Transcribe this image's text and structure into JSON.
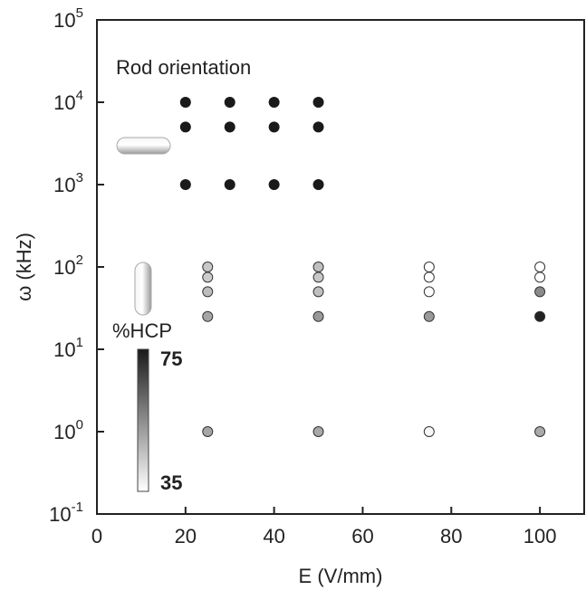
{
  "chart_data": {
    "type": "scatter",
    "annotation": "Rod orientation",
    "xlabel": "E (V/mm)",
    "ylabel": "ω (kHz)",
    "xlim": [
      0,
      110
    ],
    "ylim": [
      0.1,
      100000
    ],
    "log_y": true,
    "xticks": [
      0,
      20,
      40,
      60,
      80,
      100
    ],
    "yticks": [
      {
        "value": 0.1,
        "label": "10",
        "exponent": "-1"
      },
      {
        "value": 1,
        "label": "10",
        "exponent": "0"
      },
      {
        "value": 10,
        "label": "10",
        "exponent": "1"
      },
      {
        "value": 100,
        "label": "10",
        "exponent": "2"
      },
      {
        "value": 1000,
        "label": "10",
        "exponent": "3"
      },
      {
        "value": 10000,
        "label": "10",
        "exponent": "4"
      },
      {
        "value": 100000,
        "label": "10",
        "exponent": "5"
      }
    ],
    "series": [
      {
        "color": "#1a1a1a",
        "x": [
          20,
          30,
          40,
          50,
          20,
          30,
          40,
          50,
          20,
          30,
          40,
          50
        ],
        "values": [
          10000,
          10000,
          10000,
          10000,
          5000,
          5000,
          5000,
          5000,
          1000,
          1000,
          1000,
          1000
        ]
      },
      {
        "x": [
          25,
          25,
          25,
          25,
          25,
          50,
          50,
          50,
          50,
          50,
          75,
          75,
          75,
          75,
          75,
          100,
          100,
          100,
          100,
          100
        ],
        "values": [
          100,
          75,
          50,
          25,
          1,
          100,
          75,
          50,
          25,
          1,
          100,
          75,
          50,
          25,
          1,
          100,
          75,
          50,
          25,
          1
        ],
        "colors": [
          "#c8c8c8",
          "#cccccc",
          "#bdbdbd",
          "#a6a6a6",
          "#a6a6a6",
          "#bfbfbf",
          "#c8c8c8",
          "#bfbfbf",
          "#999999",
          "#a8a8a8",
          "#ffffff",
          "#ffffff",
          "#ffffff",
          "#999999",
          "#f7f7f7",
          "#ffffff",
          "#ffffff",
          "#8a8a8a",
          "#222222",
          "#aaaaaa"
        ]
      }
    ],
    "colorbar": {
      "label": "%HCP",
      "lim": [
        35,
        75
      ],
      "ticks": [
        75,
        35
      ],
      "colors": [
        "#1a1a1a",
        "#ffffff"
      ]
    }
  }
}
